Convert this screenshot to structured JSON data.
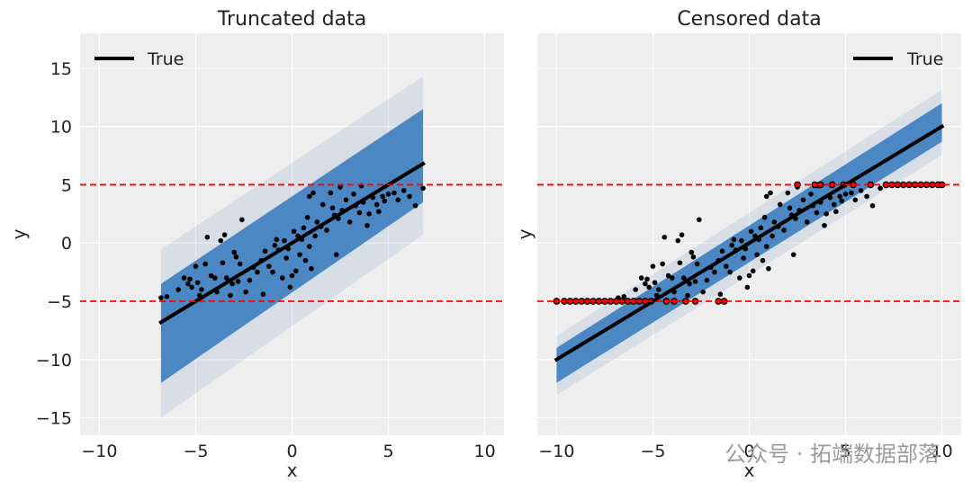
{
  "watermark": "公众号 · 拓端数据部落",
  "chart_data": [
    {
      "type": "scatter",
      "title": "Truncated data",
      "xlabel": "x",
      "ylabel": "y",
      "xlim": [
        -11,
        11
      ],
      "ylim": [
        -16.5,
        18
      ],
      "xticks": [
        -10,
        -5,
        0,
        5,
        10
      ],
      "yticks": [
        -15,
        -10,
        -5,
        0,
        5,
        10,
        15
      ],
      "xtick_labels": [
        "−10",
        "−5",
        "0",
        "5",
        "10"
      ],
      "ytick_labels": [
        "−15",
        "−10",
        "−5",
        "0",
        "5",
        "10",
        "15"
      ],
      "grid": true,
      "bounds": [
        -5,
        5
      ],
      "legend": {
        "label": "True",
        "position": "upper-left"
      },
      "true_line": {
        "x": [
          -6.8,
          6.8
        ],
        "y": [
          -6.8,
          6.8
        ]
      },
      "posterior_band": {
        "x": [
          -6.8,
          6.8
        ],
        "lower": [
          -12.0,
          3.5
        ],
        "upper": [
          -3.5,
          11.5
        ]
      },
      "points": [
        [
          -6.8,
          -4.7
        ],
        [
          -6.5,
          -4.6
        ],
        [
          -5.9,
          -4.0
        ],
        [
          -5.6,
          -3.0
        ],
        [
          -5.4,
          -3.5
        ],
        [
          -5.3,
          -3.1
        ],
        [
          -5.2,
          -3.8
        ],
        [
          -5.0,
          -2.0
        ],
        [
          -4.9,
          -3.4
        ],
        [
          -4.8,
          -4.5
        ],
        [
          -4.7,
          -4.0
        ],
        [
          -4.5,
          -1.8
        ],
        [
          -4.4,
          0.5
        ],
        [
          -4.2,
          -2.8
        ],
        [
          -4.0,
          -3.0
        ],
        [
          -3.9,
          -4.2
        ],
        [
          -3.7,
          0.2
        ],
        [
          -3.6,
          -1.7
        ],
        [
          -3.5,
          0.7
        ],
        [
          -3.4,
          -3.0
        ],
        [
          -3.2,
          -4.5
        ],
        [
          -3.1,
          -3.5
        ],
        [
          -3.0,
          -0.8
        ],
        [
          -2.9,
          -1.2
        ],
        [
          -2.7,
          -1.8
        ],
        [
          -2.6,
          2.0
        ],
        [
          -2.4,
          -4.2
        ],
        [
          -2.2,
          -3.2
        ],
        [
          -2.0,
          -2.1
        ],
        [
          -1.8,
          -2.5
        ],
        [
          -1.6,
          -1.5
        ],
        [
          -1.5,
          -4.4
        ],
        [
          -1.4,
          -0.7
        ],
        [
          -1.2,
          -2.0
        ],
        [
          -1.0,
          -2.5
        ],
        [
          -0.9,
          -0.2
        ],
        [
          -0.7,
          -0.6
        ],
        [
          -0.5,
          -3.0
        ],
        [
          -0.4,
          0.2
        ],
        [
          -0.3,
          -1.3
        ],
        [
          -0.2,
          -0.5
        ],
        [
          -0.1,
          -3.8
        ],
        [
          0.0,
          -2.8
        ],
        [
          0.1,
          1.0
        ],
        [
          0.2,
          -2.4
        ],
        [
          0.3,
          0.6
        ],
        [
          0.4,
          -1.0
        ],
        [
          0.5,
          0.3
        ],
        [
          0.6,
          1.3
        ],
        [
          0.7,
          -1.5
        ],
        [
          0.8,
          2.2
        ],
        [
          0.9,
          -0.3
        ],
        [
          1.0,
          -2.2
        ],
        [
          1.1,
          4.3
        ],
        [
          1.2,
          0.6
        ],
        [
          1.3,
          1.8
        ],
        [
          1.5,
          1.4
        ],
        [
          1.6,
          3.3
        ],
        [
          1.8,
          1.1
        ],
        [
          2.0,
          4.3
        ],
        [
          2.1,
          3.0
        ],
        [
          2.2,
          2.4
        ],
        [
          2.3,
          -1.0
        ],
        [
          2.4,
          2.1
        ],
        [
          2.5,
          4.8
        ],
        [
          2.6,
          2.8
        ],
        [
          2.8,
          3.7
        ],
        [
          3.0,
          1.8
        ],
        [
          3.2,
          4.2
        ],
        [
          3.3,
          3.2
        ],
        [
          3.5,
          2.6
        ],
        [
          3.6,
          4.9
        ],
        [
          3.7,
          3.5
        ],
        [
          3.9,
          1.5
        ],
        [
          4.0,
          2.5
        ],
        [
          4.2,
          3.9
        ],
        [
          4.4,
          3.3
        ],
        [
          4.5,
          2.7
        ],
        [
          4.7,
          4.0
        ],
        [
          4.8,
          3.6
        ],
        [
          5.0,
          4.2
        ],
        [
          5.3,
          4.3
        ],
        [
          5.5,
          3.7
        ],
        [
          5.8,
          4.5
        ],
        [
          6.1,
          4.0
        ],
        [
          6.4,
          3.2
        ],
        [
          6.8,
          4.7
        ],
        [
          -0.8,
          0.3
        ],
        [
          -2.8,
          -3.3
        ],
        [
          0.9,
          4.0
        ]
      ],
      "highlighted_points": []
    },
    {
      "type": "scatter",
      "title": "Censored data",
      "xlabel": "x",
      "ylabel": "y",
      "xlim": [
        -11,
        11
      ],
      "ylim": [
        -16.5,
        18
      ],
      "xticks": [
        -10,
        -5,
        0,
        5,
        10
      ],
      "yticks": [
        -15,
        -10,
        -5,
        0,
        5,
        10,
        15
      ],
      "xtick_labels": [
        "−10",
        "−5",
        "0",
        "5",
        "10"
      ],
      "ytick_labels": [],
      "grid": true,
      "bounds": [
        -5,
        5
      ],
      "legend": {
        "label": "True",
        "position": "upper-right"
      },
      "true_line": {
        "x": [
          -10,
          10
        ],
        "y": [
          -10,
          10
        ]
      },
      "posterior_band": {
        "x": [
          -10,
          10
        ],
        "lower": [
          -12.0,
          8.7
        ],
        "upper": [
          -9.0,
          12.0
        ]
      },
      "points": [
        [
          -6.8,
          -4.7
        ],
        [
          -6.5,
          -4.6
        ],
        [
          -5.9,
          -4.0
        ],
        [
          -5.6,
          -3.0
        ],
        [
          -5.4,
          -3.5
        ],
        [
          -5.3,
          -3.1
        ],
        [
          -5.2,
          -3.8
        ],
        [
          -5.0,
          -2.0
        ],
        [
          -4.9,
          -3.4
        ],
        [
          -4.8,
          -4.5
        ],
        [
          -4.7,
          -4.0
        ],
        [
          -4.5,
          -1.8
        ],
        [
          -4.4,
          0.5
        ],
        [
          -4.2,
          -2.8
        ],
        [
          -4.0,
          -3.0
        ],
        [
          -3.9,
          -4.2
        ],
        [
          -3.7,
          0.2
        ],
        [
          -3.6,
          -1.7
        ],
        [
          -3.5,
          0.7
        ],
        [
          -3.4,
          -3.0
        ],
        [
          -3.2,
          -4.5
        ],
        [
          -3.1,
          -3.5
        ],
        [
          -3.0,
          -0.8
        ],
        [
          -2.9,
          -1.2
        ],
        [
          -2.7,
          -1.8
        ],
        [
          -2.6,
          2.0
        ],
        [
          -2.4,
          -4.2
        ],
        [
          -2.2,
          -3.2
        ],
        [
          -2.0,
          -2.1
        ],
        [
          -1.8,
          -2.5
        ],
        [
          -1.6,
          -1.5
        ],
        [
          -1.5,
          -4.4
        ],
        [
          -1.4,
          -0.7
        ],
        [
          -1.2,
          -2.0
        ],
        [
          -1.0,
          -2.5
        ],
        [
          -0.9,
          -0.2
        ],
        [
          -0.7,
          -0.6
        ],
        [
          -0.5,
          -3.0
        ],
        [
          -0.4,
          0.2
        ],
        [
          -0.3,
          -1.3
        ],
        [
          -0.2,
          -0.5
        ],
        [
          -0.1,
          -3.8
        ],
        [
          0.0,
          -2.8
        ],
        [
          0.1,
          1.0
        ],
        [
          0.2,
          -2.4
        ],
        [
          0.3,
          0.6
        ],
        [
          0.4,
          -1.0
        ],
        [
          0.5,
          0.3
        ],
        [
          0.6,
          1.3
        ],
        [
          0.7,
          -1.5
        ],
        [
          0.8,
          2.2
        ],
        [
          0.9,
          -0.3
        ],
        [
          1.0,
          -2.2
        ],
        [
          1.1,
          4.3
        ],
        [
          1.2,
          0.6
        ],
        [
          1.3,
          1.8
        ],
        [
          1.5,
          1.4
        ],
        [
          1.6,
          3.3
        ],
        [
          1.8,
          1.1
        ],
        [
          2.0,
          4.3
        ],
        [
          2.1,
          3.0
        ],
        [
          2.2,
          2.4
        ],
        [
          2.3,
          -1.0
        ],
        [
          2.4,
          2.1
        ],
        [
          2.5,
          4.8
        ],
        [
          2.6,
          2.8
        ],
        [
          2.8,
          3.7
        ],
        [
          3.0,
          1.8
        ],
        [
          3.2,
          4.2
        ],
        [
          3.3,
          3.2
        ],
        [
          3.5,
          2.6
        ],
        [
          3.6,
          4.9
        ],
        [
          3.7,
          3.5
        ],
        [
          3.9,
          1.5
        ],
        [
          4.0,
          2.5
        ],
        [
          4.2,
          3.9
        ],
        [
          4.4,
          3.3
        ],
        [
          4.5,
          2.7
        ],
        [
          4.7,
          4.0
        ],
        [
          4.8,
          3.6
        ],
        [
          5.0,
          4.2
        ],
        [
          5.3,
          4.3
        ],
        [
          5.5,
          3.7
        ],
        [
          5.8,
          4.5
        ],
        [
          6.1,
          4.0
        ],
        [
          6.4,
          3.2
        ],
        [
          6.8,
          4.7
        ],
        [
          -0.8,
          0.3
        ],
        [
          -2.8,
          -3.3
        ],
        [
          0.9,
          4.0
        ]
      ],
      "highlighted_points": [
        [
          -10.0,
          -5
        ],
        [
          -9.6,
          -5
        ],
        [
          -9.3,
          -5
        ],
        [
          -9.0,
          -5
        ],
        [
          -8.7,
          -5
        ],
        [
          -8.4,
          -5
        ],
        [
          -8.1,
          -5
        ],
        [
          -7.8,
          -5
        ],
        [
          -7.5,
          -5
        ],
        [
          -7.2,
          -5
        ],
        [
          -6.9,
          -5
        ],
        [
          -6.6,
          -5
        ],
        [
          -6.3,
          -5
        ],
        [
          -6.0,
          -5
        ],
        [
          -5.7,
          -5
        ],
        [
          -5.4,
          -5
        ],
        [
          -5.1,
          -5
        ],
        [
          -4.3,
          -5
        ],
        [
          -3.9,
          -5
        ],
        [
          -3.3,
          -5
        ],
        [
          -2.8,
          -5
        ],
        [
          -1.6,
          -5
        ],
        [
          -1.3,
          -5
        ],
        [
          2.5,
          5
        ],
        [
          3.4,
          5
        ],
        [
          3.7,
          5
        ],
        [
          4.3,
          5
        ],
        [
          4.9,
          5
        ],
        [
          5.4,
          5
        ],
        [
          6.3,
          5
        ],
        [
          7.1,
          5
        ],
        [
          7.4,
          5
        ],
        [
          7.7,
          5
        ],
        [
          8.0,
          5
        ],
        [
          8.3,
          5
        ],
        [
          8.6,
          5
        ],
        [
          8.9,
          5
        ],
        [
          9.2,
          5
        ],
        [
          9.5,
          5
        ],
        [
          9.8,
          5
        ],
        [
          10.0,
          5
        ]
      ]
    }
  ],
  "colors": {
    "axes_bg": "#eeeeee",
    "grid": "#ffffff",
    "band": "#3f7fbf",
    "band_haze": "#8fa8cc",
    "true_line": "#000000",
    "points": "#000000",
    "censored_points": "#ff0000",
    "bound_lines": "#ff0000"
  }
}
